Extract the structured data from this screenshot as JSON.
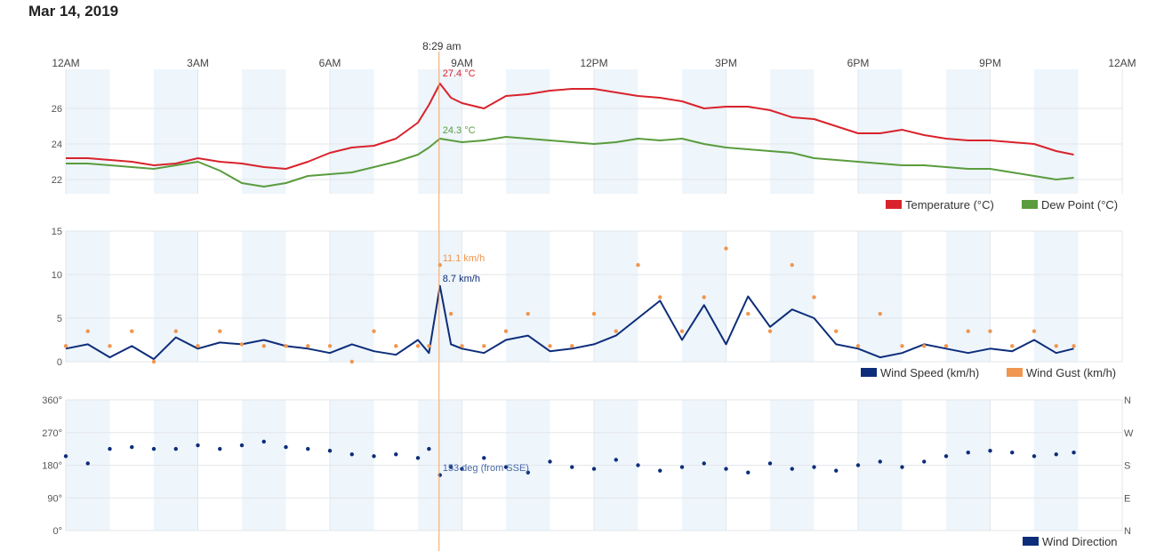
{
  "page": {
    "title": "Mar 14, 2019"
  },
  "crosshair": {
    "time_label": "8:29 am",
    "temp_label": "27.4 °C",
    "dew_label": "24.3 °C",
    "gust_label": "11.1 km/h",
    "speed_label": "8.7 km/h",
    "dir_label": "153 deg (from SSE)",
    "hour": 8.48
  },
  "colors": {
    "temperature": "#d9232c",
    "dew_point": "#5a9c3e",
    "wind_speed": "#0d2d7a",
    "wind_gust": "#f0964e",
    "wind_direction": "#0d2d7a",
    "band": "#eef5fb",
    "crosshair": "#f5a25d"
  },
  "legends": {
    "temperature": "Temperature (°C)",
    "dew_point": "Dew Point (°C)",
    "wind_speed": "Wind Speed (km/h)",
    "wind_gust": "Wind Gust (km/h)",
    "wind_direction": "Wind Direction"
  },
  "chart_data": [
    {
      "type": "line",
      "x_unit": "hour of day",
      "x_tick_labels": [
        "12AM",
        "3AM",
        "6AM",
        "9AM",
        "12PM",
        "3PM",
        "6PM",
        "9PM",
        "12AM"
      ],
      "y_tick_labels": [
        "22",
        "24",
        "26"
      ],
      "ylim": [
        21.2,
        28.2
      ],
      "x": [
        0,
        0.5,
        1,
        1.5,
        2,
        2.5,
        3,
        3.5,
        4,
        4.5,
        5,
        5.5,
        6,
        6.5,
        7,
        7.5,
        8,
        8.25,
        8.5,
        8.75,
        9,
        9.5,
        10,
        10.5,
        11,
        11.5,
        12,
        12.5,
        13,
        13.5,
        14,
        14.5,
        15,
        15.5,
        16,
        16.5,
        17,
        17.5,
        18,
        18.5,
        19,
        19.5,
        20,
        20.5,
        21,
        21.5,
        22,
        22.5,
        22.9
      ],
      "series": [
        {
          "name": "Temperature (°C)",
          "color": "#d9232c",
          "values": [
            23.2,
            23.2,
            23.1,
            23.0,
            22.8,
            22.9,
            23.2,
            23.0,
            22.9,
            22.7,
            22.6,
            23.0,
            23.5,
            23.8,
            23.9,
            24.3,
            25.2,
            26.2,
            27.4,
            26.6,
            26.3,
            26.0,
            26.7,
            26.8,
            27.0,
            27.1,
            27.1,
            26.9,
            26.7,
            26.6,
            26.4,
            26.0,
            26.1,
            26.1,
            25.9,
            25.5,
            25.4,
            25.0,
            24.6,
            24.6,
            24.8,
            24.5,
            24.3,
            24.2,
            24.2,
            24.1,
            24.0,
            23.6,
            23.4
          ]
        },
        {
          "name": "Dew Point (°C)",
          "color": "#5a9c3e",
          "values": [
            22.9,
            22.9,
            22.8,
            22.7,
            22.6,
            22.8,
            23.0,
            22.5,
            21.8,
            21.6,
            21.8,
            22.2,
            22.3,
            22.4,
            22.7,
            23.0,
            23.4,
            23.8,
            24.3,
            24.2,
            24.1,
            24.2,
            24.4,
            24.3,
            24.2,
            24.1,
            24.0,
            24.1,
            24.3,
            24.2,
            24.3,
            24.0,
            23.8,
            23.7,
            23.6,
            23.5,
            23.2,
            23.1,
            23.0,
            22.9,
            22.8,
            22.8,
            22.7,
            22.6,
            22.6,
            22.4,
            22.2,
            22.0,
            22.1
          ]
        }
      ]
    },
    {
      "type": "line",
      "x_unit": "hour of day",
      "x_tick_labels": [
        "12AM",
        "3AM",
        "6AM",
        "9AM",
        "12PM",
        "3PM",
        "6PM",
        "9PM",
        "12AM"
      ],
      "y_tick_labels": [
        "0",
        "5",
        "10",
        "15"
      ],
      "ylim": [
        0,
        15
      ],
      "x": [
        0,
        0.5,
        1,
        1.5,
        2,
        2.5,
        3,
        3.5,
        4,
        4.5,
        5,
        5.5,
        6,
        6.5,
        7,
        7.5,
        8,
        8.25,
        8.5,
        8.75,
        9,
        9.5,
        10,
        10.5,
        11,
        11.5,
        12,
        12.5,
        13,
        13.5,
        14,
        14.5,
        15,
        15.5,
        16,
        16.5,
        17,
        17.5,
        18,
        18.5,
        19,
        19.5,
        20,
        20.5,
        21,
        21.5,
        22,
        22.5,
        22.9
      ],
      "series": [
        {
          "name": "Wind Speed (km/h)",
          "color": "#0d2d7a",
          "values": [
            1.5,
            2.0,
            0.5,
            1.8,
            0.3,
            2.8,
            1.5,
            2.2,
            2.0,
            2.5,
            1.8,
            1.5,
            1.0,
            2.0,
            1.2,
            0.8,
            2.5,
            1.0,
            8.7,
            2.0,
            1.5,
            1.0,
            2.5,
            3.0,
            1.2,
            1.5,
            2.0,
            3.0,
            5.0,
            7.0,
            2.5,
            6.5,
            2.0,
            7.5,
            4.0,
            6.0,
            5.0,
            2.0,
            1.5,
            0.5,
            1.0,
            2.0,
            1.5,
            1.0,
            1.5,
            1.2,
            2.5,
            1.0,
            1.5
          ]
        },
        {
          "name": "Wind Gust (km/h)",
          "color": "#f0964e",
          "values": [
            1.8,
            3.5,
            1.8,
            3.5,
            0.0,
            3.5,
            1.8,
            3.5,
            2.0,
            1.8,
            1.8,
            1.8,
            1.8,
            0.0,
            3.5,
            1.8,
            1.8,
            1.8,
            11.1,
            5.5,
            1.8,
            1.8,
            3.5,
            5.5,
            1.8,
            1.8,
            5.5,
            3.5,
            11.1,
            7.4,
            3.5,
            7.4,
            13.0,
            5.5,
            3.5,
            11.1,
            7.4,
            3.5,
            1.8,
            5.5,
            1.8,
            1.8,
            1.8,
            3.5,
            3.5,
            1.8,
            3.5,
            1.8,
            1.8
          ]
        }
      ]
    },
    {
      "type": "scatter",
      "x_unit": "hour of day",
      "x_tick_labels": [
        "12AM",
        "3AM",
        "6AM",
        "9AM",
        "12PM",
        "3PM",
        "6PM",
        "9PM",
        "12AM"
      ],
      "y_tick_labels": [
        "0°",
        "90°",
        "180°",
        "270°",
        "360°"
      ],
      "y_right_tick_labels": [
        "N",
        "E",
        "S",
        "W",
        "N"
      ],
      "ylim": [
        0,
        360
      ],
      "x": [
        0,
        0.5,
        1,
        1.5,
        2,
        2.5,
        3,
        3.5,
        4,
        4.5,
        5,
        5.5,
        6,
        6.5,
        7,
        7.5,
        8,
        8.25,
        8.5,
        8.75,
        9,
        9.5,
        10,
        10.5,
        11,
        11.5,
        12,
        12.5,
        13,
        13.5,
        14,
        14.5,
        15,
        15.5,
        16,
        16.5,
        17,
        17.5,
        18,
        18.5,
        19,
        19.5,
        20,
        20.5,
        21,
        21.5,
        22,
        22.5,
        22.9
      ],
      "series": [
        {
          "name": "Wind Direction",
          "color": "#0d2d7a",
          "values": [
            205,
            185,
            225,
            230,
            225,
            225,
            235,
            225,
            235,
            245,
            230,
            225,
            220,
            210,
            205,
            210,
            200,
            225,
            153,
            175,
            170,
            200,
            175,
            160,
            190,
            175,
            170,
            195,
            180,
            165,
            175,
            185,
            170,
            160,
            185,
            170,
            175,
            165,
            180,
            190,
            175,
            190,
            205,
            215,
            220,
            215,
            205,
            210,
            215
          ]
        }
      ]
    }
  ]
}
